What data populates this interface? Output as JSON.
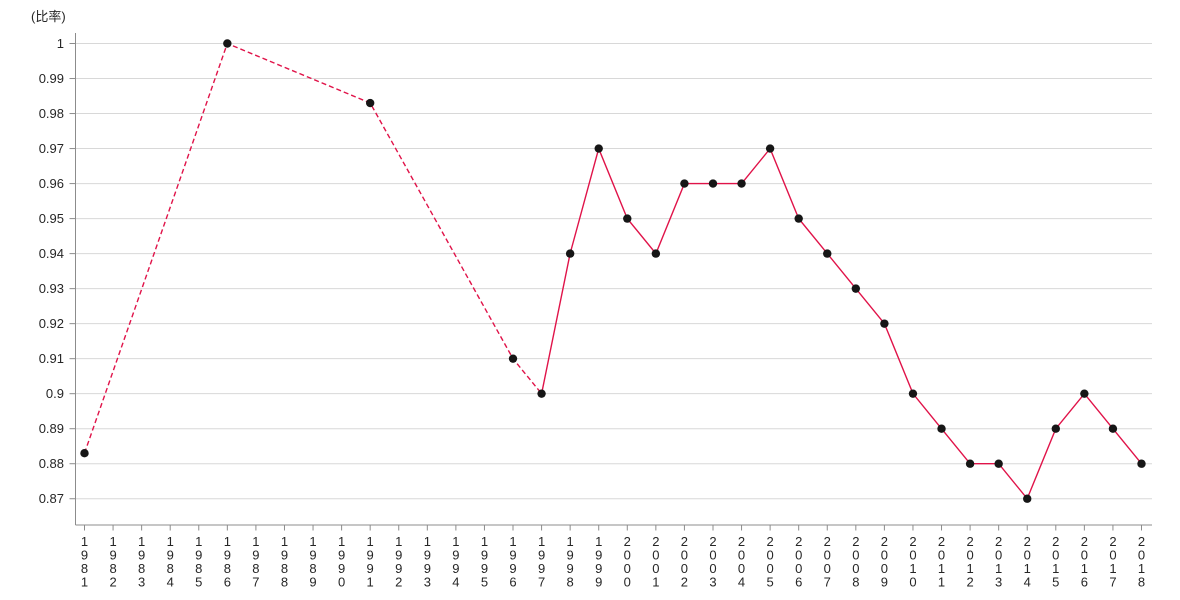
{
  "chart_data": {
    "type": "line",
    "title": "",
    "ylabel": "(比率)",
    "xlabel": "",
    "legend_position": "none",
    "grid": true,
    "x": [
      "1981",
      "1982",
      "1983",
      "1984",
      "1985",
      "1986",
      "1987",
      "1988",
      "1989",
      "1990",
      "1991",
      "1992",
      "1993",
      "1994",
      "1995",
      "1996",
      "1997",
      "1998",
      "1999",
      "2000",
      "2001",
      "2002",
      "2003",
      "2004",
      "2005",
      "2006",
      "2007",
      "2008",
      "2009",
      "2010",
      "2011",
      "2012",
      "2013",
      "2014",
      "2015",
      "2016",
      "2017",
      "2018"
    ],
    "values": [
      0.883,
      null,
      null,
      null,
      null,
      1.0,
      null,
      null,
      null,
      null,
      0.983,
      null,
      null,
      null,
      null,
      0.91,
      0.9,
      0.94,
      0.97,
      0.95,
      0.94,
      0.96,
      0.96,
      0.96,
      0.97,
      0.95,
      0.94,
      0.93,
      0.92,
      0.9,
      0.89,
      0.88,
      0.88,
      0.87,
      0.89,
      0.9,
      0.89,
      0.88
    ],
    "y_ticks": [
      "1",
      "0.99",
      "0.98",
      "0.97",
      "0.96",
      "0.95",
      "0.94",
      "0.93",
      "0.92",
      "0.91",
      "0.9",
      "0.89",
      "0.88",
      "0.87"
    ],
    "ylim": [
      0.8625,
      1.003
    ],
    "dashed_until_x": "1997",
    "line_color": "#e01349",
    "marker_color": "#161616",
    "grid_color": "#d8d8d8",
    "axis_color": "#8c8c8c",
    "text_color": "#262626"
  }
}
